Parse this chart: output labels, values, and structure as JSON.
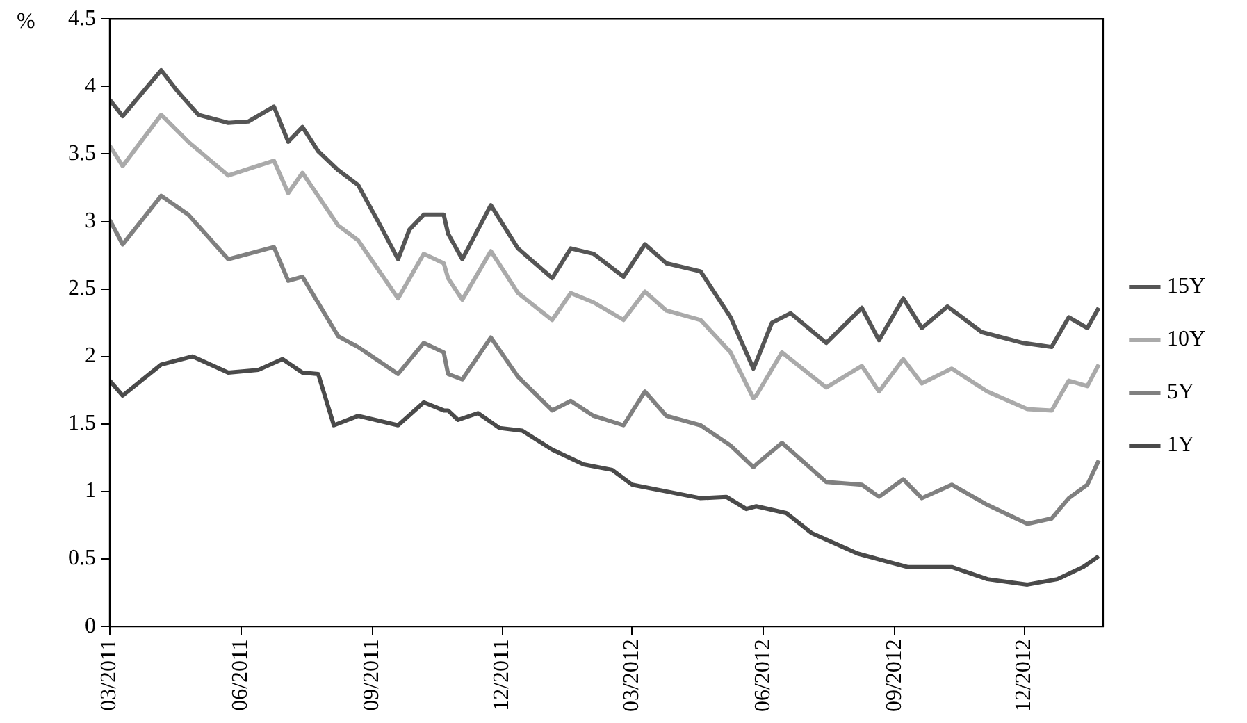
{
  "chart_data": {
    "type": "line",
    "ylabel": "%",
    "xlim": [
      "2011-03-01",
      "2013-01-25"
    ],
    "ylim": [
      0,
      4.5
    ],
    "yticks": [
      0,
      0.5,
      1,
      1.5,
      2,
      2.5,
      3,
      3.5,
      4,
      4.5
    ],
    "xticks": [
      {
        "value": "2011-03-01",
        "label": "03/2011"
      },
      {
        "value": "2011-06-01",
        "label": "06/2011"
      },
      {
        "value": "2011-09-01",
        "label": "09/2011"
      },
      {
        "value": "2011-12-01",
        "label": "12/2011"
      },
      {
        "value": "2012-03-01",
        "label": "03/2012"
      },
      {
        "value": "2012-06-01",
        "label": "06/2012"
      },
      {
        "value": "2012-09-01",
        "label": "09/2012"
      },
      {
        "value": "2012-12-01",
        "label": "12/2012"
      }
    ],
    "grid": false,
    "legend": "right",
    "marker": "none",
    "line_style": "solid",
    "series": [
      {
        "name": "15Y",
        "color": "#555555",
        "x": [
          "2011-03-01",
          "2011-03-10",
          "2011-04-06",
          "2011-04-17",
          "2011-05-02",
          "2011-05-23",
          "2011-06-06",
          "2011-06-24",
          "2011-07-04",
          "2011-07-14",
          "2011-07-25",
          "2011-08-08",
          "2011-08-22",
          "2011-09-06",
          "2011-09-19",
          "2011-09-27",
          "2011-10-07",
          "2011-10-21",
          "2011-10-24",
          "2011-11-03",
          "2011-11-23",
          "2011-12-12",
          "2012-01-05",
          "2012-01-18",
          "2012-02-03",
          "2012-02-24",
          "2012-03-10",
          "2012-03-25",
          "2012-04-18",
          "2012-05-09",
          "2012-05-25",
          "2012-05-27",
          "2012-06-07",
          "2012-06-20",
          "2012-07-15",
          "2012-08-09",
          "2012-08-21",
          "2012-09-07",
          "2012-09-20",
          "2012-10-08",
          "2012-11-01",
          "2012-11-30",
          "2012-12-20",
          "2013-01-01",
          "2013-01-14",
          "2013-01-22"
        ],
        "values": [
          3.9,
          3.78,
          4.12,
          3.97,
          3.79,
          3.73,
          3.74,
          3.85,
          3.59,
          3.7,
          3.52,
          3.38,
          3.27,
          2.98,
          2.72,
          2.94,
          3.05,
          3.05,
          2.91,
          2.72,
          3.12,
          2.8,
          2.58,
          2.8,
          2.76,
          2.59,
          2.83,
          2.69,
          2.63,
          2.29,
          1.91,
          1.96,
          2.25,
          2.32,
          2.1,
          2.36,
          2.12,
          2.43,
          2.21,
          2.37,
          2.18,
          2.1,
          2.07,
          2.29,
          2.21,
          2.36
        ]
      },
      {
        "name": "10Y",
        "color": "#aaaaaa",
        "x": [
          "2011-03-01",
          "2011-03-10",
          "2011-04-06",
          "2011-04-25",
          "2011-05-23",
          "2011-06-24",
          "2011-07-04",
          "2011-07-14",
          "2011-08-08",
          "2011-08-22",
          "2011-09-19",
          "2011-10-07",
          "2011-10-21",
          "2011-10-24",
          "2011-11-03",
          "2011-11-23",
          "2011-12-12",
          "2012-01-05",
          "2012-01-18",
          "2012-02-03",
          "2012-02-24",
          "2012-03-10",
          "2012-03-25",
          "2012-04-18",
          "2012-05-09",
          "2012-05-25",
          "2012-05-27",
          "2012-06-14",
          "2012-07-15",
          "2012-08-09",
          "2012-08-21",
          "2012-09-07",
          "2012-09-20",
          "2012-10-11",
          "2012-11-05",
          "2012-12-03",
          "2012-12-20",
          "2013-01-01",
          "2013-01-14",
          "2013-01-22"
        ],
        "values": [
          3.56,
          3.41,
          3.79,
          3.59,
          3.34,
          3.45,
          3.21,
          3.36,
          2.97,
          2.86,
          2.43,
          2.76,
          2.69,
          2.58,
          2.42,
          2.78,
          2.47,
          2.27,
          2.47,
          2.4,
          2.27,
          2.48,
          2.34,
          2.27,
          2.03,
          1.69,
          1.71,
          2.03,
          1.77,
          1.93,
          1.74,
          1.98,
          1.8,
          1.91,
          1.74,
          1.61,
          1.6,
          1.82,
          1.78,
          1.94
        ]
      },
      {
        "name": "5Y",
        "color": "#808080",
        "x": [
          "2011-03-01",
          "2011-03-10",
          "2011-04-06",
          "2011-04-25",
          "2011-05-23",
          "2011-06-24",
          "2011-07-04",
          "2011-07-14",
          "2011-08-08",
          "2011-08-22",
          "2011-09-19",
          "2011-10-07",
          "2011-10-21",
          "2011-10-24",
          "2011-11-03",
          "2011-11-23",
          "2011-12-12",
          "2012-01-05",
          "2012-01-18",
          "2012-02-03",
          "2012-02-24",
          "2012-03-10",
          "2012-03-25",
          "2012-04-18",
          "2012-05-09",
          "2012-05-25",
          "2012-05-27",
          "2012-06-14",
          "2012-07-15",
          "2012-08-09",
          "2012-08-21",
          "2012-09-07",
          "2012-09-20",
          "2012-10-11",
          "2012-11-05",
          "2012-12-03",
          "2012-12-20",
          "2013-01-01",
          "2013-01-14",
          "2013-01-22"
        ],
        "values": [
          3.01,
          2.83,
          3.19,
          3.05,
          2.72,
          2.81,
          2.56,
          2.59,
          2.15,
          2.07,
          1.87,
          2.1,
          2.03,
          1.87,
          1.83,
          2.14,
          1.85,
          1.6,
          1.67,
          1.56,
          1.49,
          1.74,
          1.56,
          1.49,
          1.34,
          1.18,
          1.2,
          1.36,
          1.07,
          1.05,
          0.96,
          1.09,
          0.95,
          1.05,
          0.9,
          0.76,
          0.8,
          0.95,
          1.05,
          1.23
        ]
      },
      {
        "name": "1Y",
        "color": "#4a4a4a",
        "x": [
          "2011-03-01",
          "2011-03-10",
          "2011-04-06",
          "2011-04-28",
          "2011-05-23",
          "2011-06-13",
          "2011-06-30",
          "2011-07-14",
          "2011-07-25",
          "2011-08-05",
          "2011-08-22",
          "2011-09-19",
          "2011-10-07",
          "2011-10-21",
          "2011-10-24",
          "2011-10-31",
          "2011-11-14",
          "2011-11-29",
          "2011-12-15",
          "2012-01-05",
          "2012-01-27",
          "2012-02-16",
          "2012-03-01",
          "2012-03-25",
          "2012-04-18",
          "2012-05-06",
          "2012-05-20",
          "2012-05-27",
          "2012-06-17",
          "2012-07-05",
          "2012-08-06",
          "2012-09-10",
          "2012-10-11",
          "2012-11-05",
          "2012-12-03",
          "2012-12-24",
          "2013-01-11",
          "2013-01-22"
        ],
        "values": [
          1.82,
          1.71,
          1.94,
          2.0,
          1.88,
          1.9,
          1.98,
          1.88,
          1.87,
          1.49,
          1.56,
          1.49,
          1.66,
          1.6,
          1.6,
          1.53,
          1.58,
          1.47,
          1.45,
          1.31,
          1.2,
          1.16,
          1.05,
          1.0,
          0.95,
          0.96,
          0.87,
          0.89,
          0.84,
          0.69,
          0.54,
          0.44,
          0.44,
          0.35,
          0.31,
          0.35,
          0.44,
          0.52
        ]
      }
    ]
  }
}
